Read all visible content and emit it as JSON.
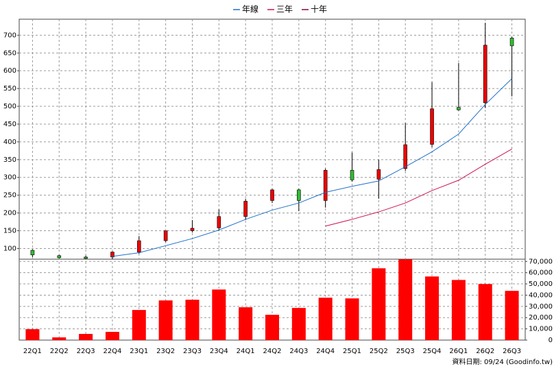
{
  "chart_data": [
    {
      "type": "candlestick",
      "categories": [
        "22Q1",
        "22Q2",
        "22Q3",
        "22Q4",
        "23Q1",
        "23Q2",
        "23Q3",
        "23Q4",
        "24Q1",
        "24Q2",
        "24Q3",
        "24Q4",
        "25Q1",
        "25Q2",
        "25Q3",
        "25Q4",
        "26Q1",
        "26Q2",
        "26Q3"
      ],
      "open": [
        95,
        80,
        76,
        76,
        90,
        122,
        150,
        158,
        190,
        235,
        265,
        235,
        320,
        295,
        325,
        393,
        497,
        510,
        692
      ],
      "high": [
        98,
        82,
        80,
        92,
        135,
        150,
        180,
        210,
        240,
        268,
        268,
        325,
        370,
        350,
        453,
        568,
        622,
        735,
        695
      ],
      "low": [
        75,
        72,
        70,
        70,
        85,
        118,
        145,
        150,
        180,
        228,
        205,
        215,
        288,
        240,
        318,
        385,
        488,
        495,
        528
      ],
      "close": [
        82,
        74,
        75,
        90,
        122,
        150,
        157,
        190,
        233,
        265,
        235,
        320,
        293,
        322,
        392,
        493,
        490,
        672,
        670
      ],
      "up_color": "#ee0000",
      "down_color": "#33bb33",
      "series": [
        {
          "name": "年線",
          "color": "#1f6fc8",
          "values": [
            null,
            null,
            null,
            78,
            88,
            108,
            128,
            152,
            182,
            208,
            228,
            258,
            275,
            290,
            330,
            372,
            422,
            505,
            578
          ]
        },
        {
          "name": "三年",
          "color": "#cc1155",
          "values": [
            null,
            null,
            null,
            null,
            null,
            null,
            null,
            null,
            null,
            null,
            null,
            163,
            182,
            203,
            228,
            263,
            292,
            337,
            380
          ]
        },
        {
          "name": "十年",
          "color": "#880044",
          "values": [
            null,
            null,
            null,
            null,
            null,
            null,
            null,
            null,
            null,
            null,
            null,
            null,
            null,
            null,
            null,
            null,
            null,
            null,
            null
          ]
        }
      ],
      "ylim": [
        70,
        745
      ],
      "yticks": [
        100,
        150,
        200,
        250,
        300,
        350,
        400,
        450,
        500,
        550,
        600,
        650,
        700
      ],
      "grid": true
    },
    {
      "type": "bar",
      "categories": [
        "22Q1",
        "22Q2",
        "22Q3",
        "22Q4",
        "23Q1",
        "23Q2",
        "23Q3",
        "23Q4",
        "24Q1",
        "24Q2",
        "24Q3",
        "24Q4",
        "25Q1",
        "25Q2",
        "25Q3",
        "25Q4",
        "26Q1",
        "26Q2",
        "26Q3"
      ],
      "values": [
        9700,
        2400,
        5500,
        7300,
        26800,
        35300,
        35900,
        45000,
        29200,
        22500,
        28600,
        37700,
        37100,
        63900,
        71800,
        56600,
        53500,
        49900,
        43800
      ],
      "color": "#ff0000",
      "ylim": [
        0,
        72000
      ],
      "yticks": [
        0,
        {
          "value": 10000,
          "label": "10,000"
        },
        {
          "value": 20000,
          "label": "20,000"
        },
        {
          "value": 30000,
          "label": "30,000"
        },
        {
          "value": 40000,
          "label": "40,000"
        },
        {
          "value": 50000,
          "label": "50,000"
        },
        {
          "value": 60000,
          "label": "60,000"
        },
        {
          "value": 70000,
          "label": "70,000"
        }
      ],
      "grid": true,
      "note": "資料日期: 09/24  (Goodinfo.tw)"
    }
  ]
}
